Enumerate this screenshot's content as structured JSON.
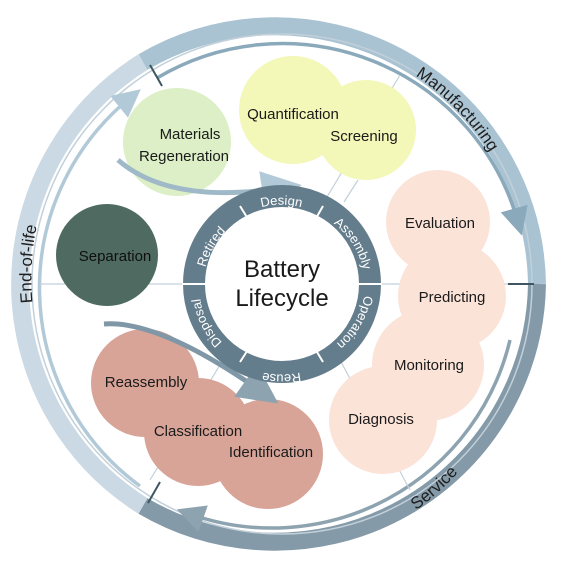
{
  "center": {
    "line1": "Battery",
    "line2": "Lifecycle"
  },
  "inner_ring": {
    "design": "Design",
    "assembly": "Assembly",
    "operation": "Operation",
    "reuse": "Reuse",
    "disposal": "Disposal",
    "retired": "Retired"
  },
  "outer_ring": {
    "manufacturing": "Manufacturing",
    "service": "Service",
    "end_of_life": "End-of-life"
  },
  "nodes": {
    "materials_regeneration": {
      "line1": "Materials",
      "line2": "Regeneration"
    },
    "quantification": "Quantification",
    "screening": "Screening",
    "evaluation": "Evaluation",
    "predicting": "Predicting",
    "monitoring": "Monitoring",
    "diagnosis": "Diagnosis",
    "separation": "Separation",
    "reassembly": "Reassembly",
    "classification": "Classification",
    "identification": "Identification"
  },
  "colors": {
    "manufacturing_band": "#a9c3d3",
    "service_band": "#849aa8",
    "end_of_life_band": "#cad9e4",
    "inner_ring": "#647d8c",
    "green_node": "#dcefc6",
    "yellow_node": "#f3f7b8",
    "peach_node": "#fbe3d8",
    "dark_node": "#4f6a61",
    "rose_node": "#d8a498"
  }
}
